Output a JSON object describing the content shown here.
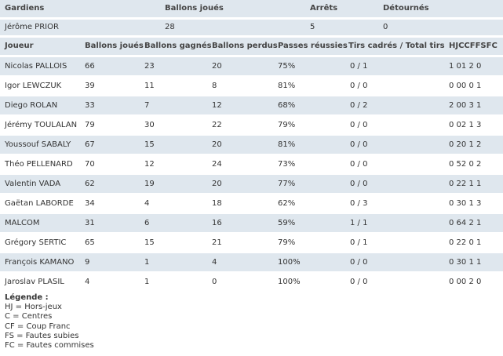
{
  "goalkeepers": {
    "headers": [
      "Gardiens",
      "Ballons joués",
      "Arrêts",
      "Détournés"
    ],
    "rows": [
      [
        "Jérôme PRIOR",
        "28",
        "5",
        "0"
      ]
    ]
  },
  "players": {
    "headers": [
      "Joueur",
      "Ballons joués",
      "Ballons gagnés",
      "Ballons perdus",
      "Passes réussies",
      "Tirs cadrés / Total tirs",
      "HJCCFFSFC"
    ],
    "rows": [
      [
        "Nicolas PALLOIS",
        "66",
        "23",
        "20",
        "75%",
        "0 / 1",
        "1 01 2 0"
      ],
      [
        "Igor LEWCZUK",
        "39",
        "11",
        "8",
        "81%",
        "0 / 0",
        "0 00 0 1"
      ],
      [
        "Diego ROLAN",
        "33",
        "7",
        "12",
        "68%",
        "0 / 2",
        "2 00 3 1"
      ],
      [
        "Jérémy TOULALAN",
        "79",
        "30",
        "22",
        "79%",
        "0 / 0",
        "0 02 1 3"
      ],
      [
        "Youssouf SABALY",
        "67",
        "15",
        "20",
        "81%",
        "0 / 0",
        "0 20 1 2"
      ],
      [
        "Théo PELLENARD",
        "70",
        "12",
        "24",
        "73%",
        "0 / 0",
        "0 52 0 2"
      ],
      [
        "Valentin VADA",
        "62",
        "19",
        "20",
        "77%",
        "0 / 0",
        "0 22 1 1"
      ],
      [
        "Gaëtan LABORDE",
        "34",
        "4",
        "18",
        "62%",
        "0 / 3",
        "0 30 1 3"
      ],
      [
        "MALCOM",
        "31",
        "6",
        "16",
        "59%",
        "1 / 1",
        "0 64 2 1"
      ],
      [
        "Grégory SERTIC",
        "65",
        "15",
        "21",
        "79%",
        "0 / 1",
        "0 22 0 1"
      ],
      [
        "François KAMANO",
        "9",
        "1",
        "4",
        "100%",
        "0 / 0",
        "0 30 1 1"
      ],
      [
        "Jaroslav PLASIL",
        "4",
        "1",
        "0",
        "100%",
        "0 / 0",
        "0 00 2 0"
      ]
    ]
  },
  "legend": {
    "title": "Légende :",
    "items": [
      "HJ = Hors-jeux",
      "C = Centres",
      "CF = Coup Franc",
      "FS = Fautes subies",
      "FC = Fautes commises"
    ]
  },
  "colors": {
    "row_shade": "#dfe7ee",
    "text": "#333333"
  }
}
